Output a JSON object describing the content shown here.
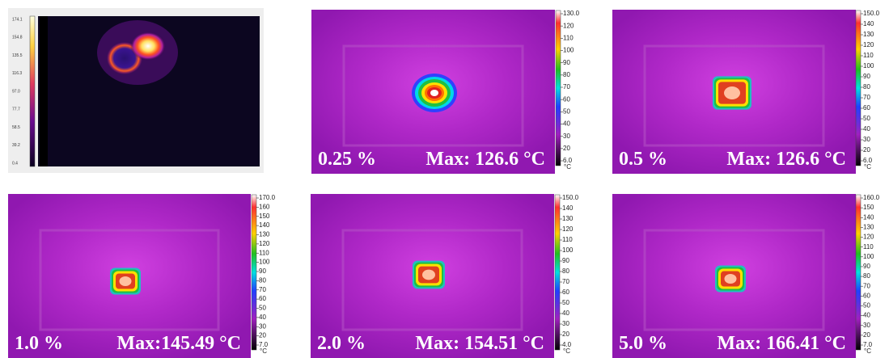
{
  "panels": [
    {
      "colorbar_ticks": [
        "174.1",
        "154.8",
        "135.5",
        "116.3",
        "97.0",
        "77.7",
        "58.5",
        "39.2",
        "0.4"
      ]
    },
    {
      "colorbar_ticks": [
        "130.0",
        "120",
        "110",
        "100",
        "90",
        "80",
        "70",
        "60",
        "50",
        "40",
        "30",
        "20",
        "6.0"
      ],
      "unit": "°C",
      "concentration": "0.25 %",
      "max_label": "Max: 126.6 °C"
    },
    {
      "colorbar_ticks": [
        "150.0",
        "140",
        "130",
        "120",
        "110",
        "100",
        "90",
        "80",
        "70",
        "60",
        "50",
        "40",
        "30",
        "20",
        "6.0"
      ],
      "unit": "°C",
      "concentration": "0.5 %",
      "max_label": "Max: 126.6 °C"
    },
    {
      "colorbar_ticks": [
        "170.0",
        "160",
        "150",
        "140",
        "130",
        "120",
        "110",
        "100",
        "90",
        "80",
        "70",
        "60",
        "50",
        "40",
        "30",
        "20",
        "7.0"
      ],
      "unit": "°C",
      "concentration": "1.0 %",
      "max_label": "Max:145.49 °C"
    },
    {
      "colorbar_ticks": [
        "150.0",
        "140",
        "130",
        "120",
        "110",
        "100",
        "90",
        "80",
        "70",
        "60",
        "50",
        "40",
        "30",
        "20",
        "4.0"
      ],
      "unit": "°C",
      "concentration": "2.0 %",
      "max_label": "Max: 154.51 °C"
    },
    {
      "colorbar_ticks": [
        "160.0",
        "150",
        "140",
        "130",
        "120",
        "110",
        "100",
        "90",
        "80",
        "70",
        "60",
        "50",
        "40",
        "30",
        "20",
        "7.0"
      ],
      "unit": "°C",
      "concentration": "5.0 %",
      "max_label": "Max: 166.41 °C"
    }
  ]
}
